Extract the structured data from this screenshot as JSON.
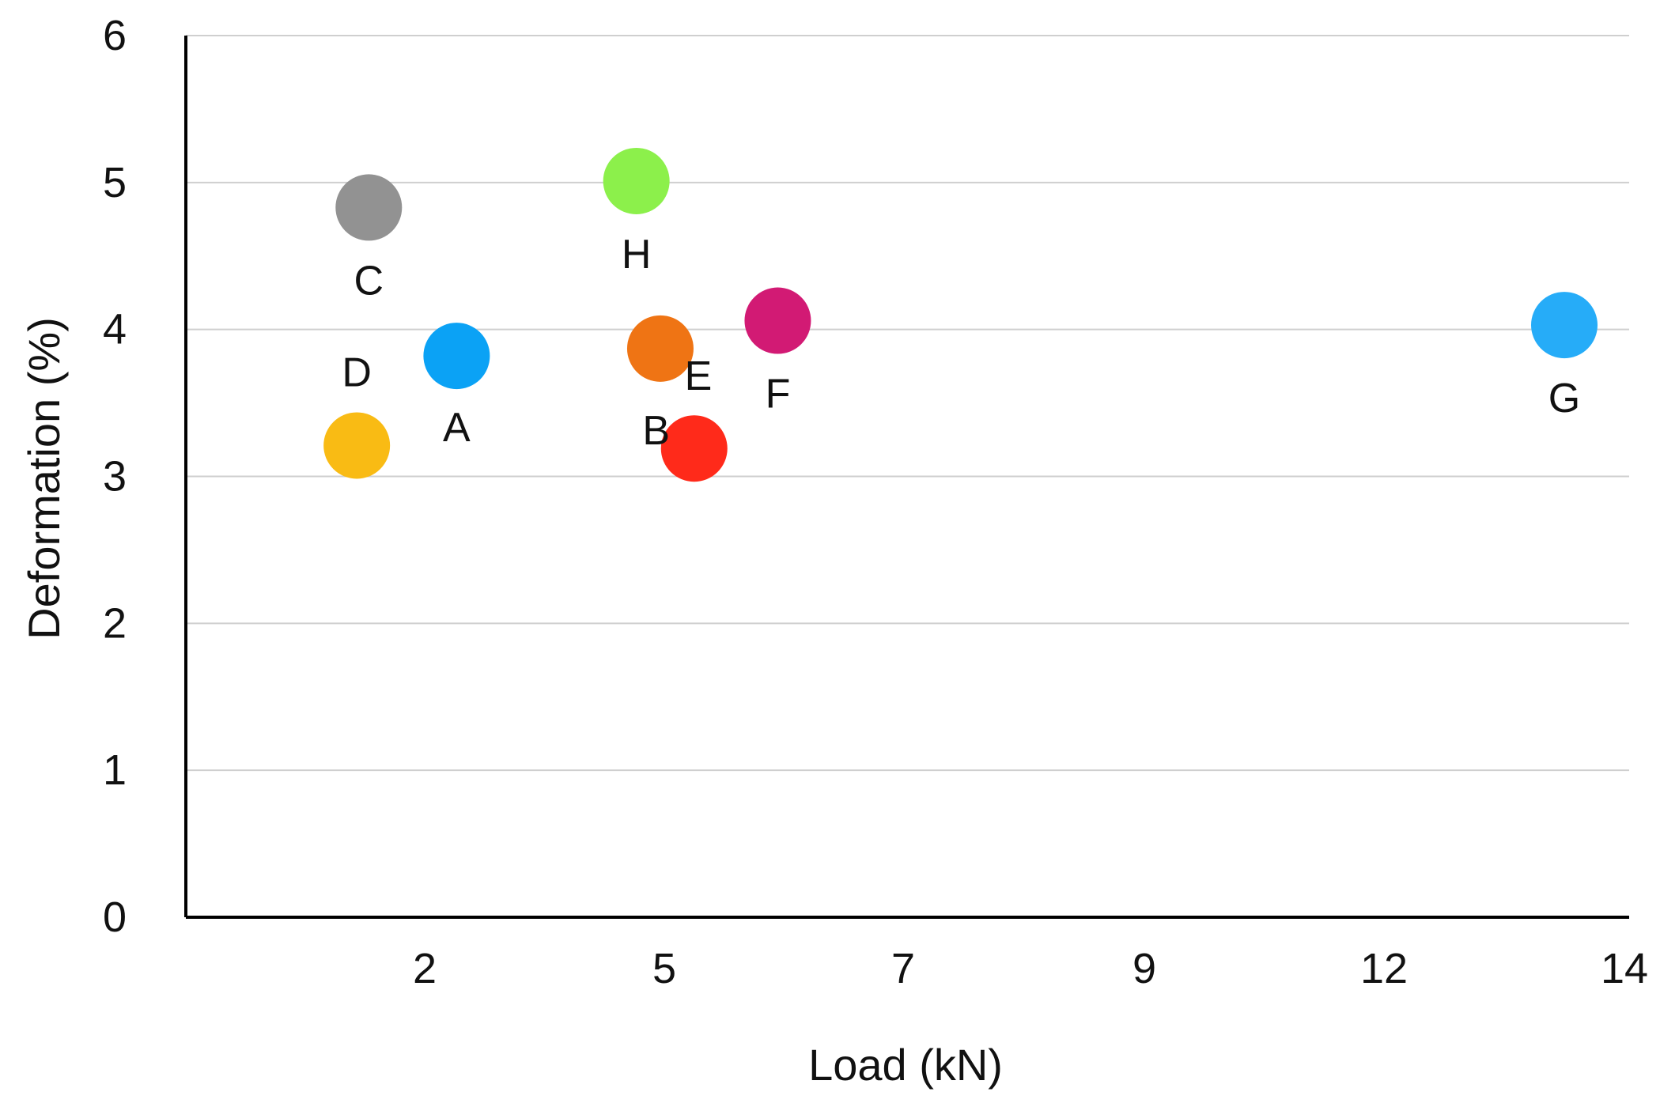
{
  "chart_data": {
    "type": "scatter",
    "title": "",
    "xlabel": "Load (kN)",
    "ylabel": "Deformation (%)",
    "x_ticks": [
      "2",
      "5",
      "7",
      "9",
      "12",
      "14"
    ],
    "y_ticks": [
      "0",
      "1",
      "2",
      "3",
      "4",
      "5",
      "6"
    ],
    "ylim": [
      0,
      6
    ],
    "grid": true,
    "points": [
      {
        "label": "A",
        "x_pos": 2.4,
        "y": 3.82,
        "color": "#0ba2f5"
      },
      {
        "label": "B",
        "x_pos": 5.25,
        "y": 3.19,
        "color": "#ff2a1a"
      },
      {
        "label": "C",
        "x_pos": 1.3,
        "y": 4.83,
        "color": "#929292"
      },
      {
        "label": "D",
        "x_pos": 1.15,
        "y": 3.21,
        "color": "#f9bb14"
      },
      {
        "label": "E",
        "x_pos": 4.95,
        "y": 3.87,
        "color": "#ef7414"
      },
      {
        "label": "F",
        "x_pos": 5.95,
        "y": 4.06,
        "color": "#d21a74"
      },
      {
        "label": "G",
        "x_pos": 13.5,
        "y": 4.03,
        "color": "#26acf8"
      },
      {
        "label": "H",
        "x_pos": 4.65,
        "y": 5.01,
        "color": "#8cf04b"
      }
    ]
  }
}
